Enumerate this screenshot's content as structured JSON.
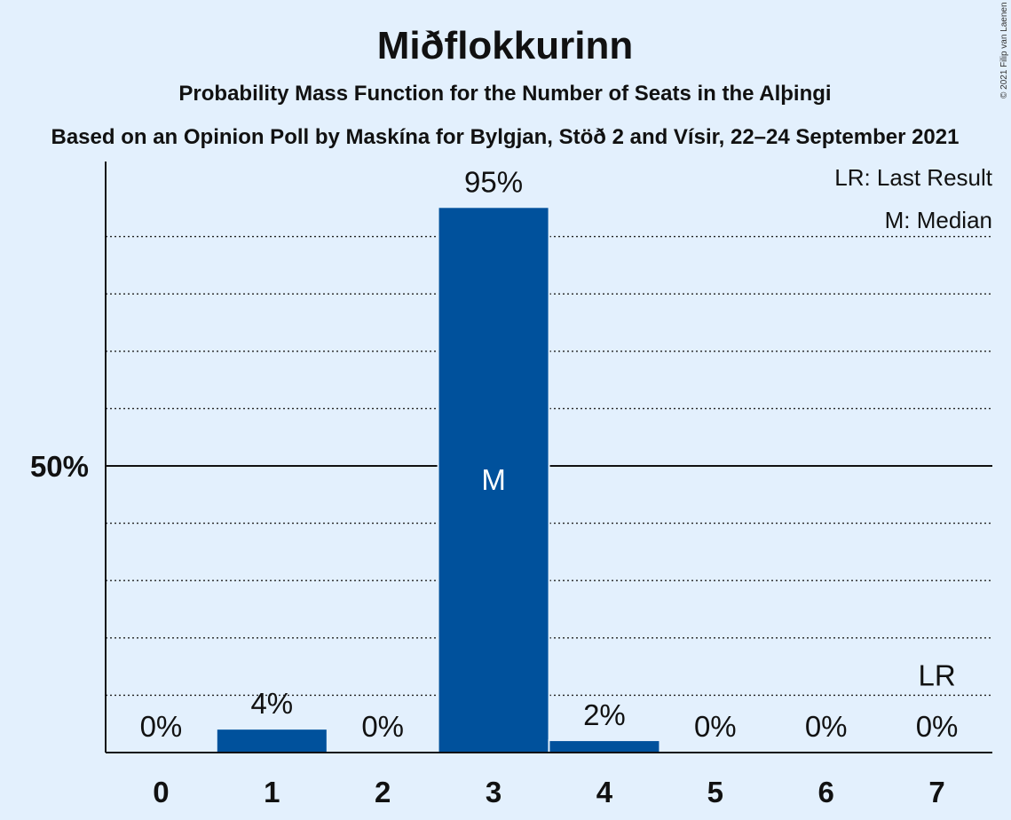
{
  "chart_data": {
    "type": "bar",
    "title": "Miðflokkurinn",
    "subtitle": "Probability Mass Function for the Number of Seats in the Alþingi",
    "subtitle2": "Based on an Opinion Poll by Maskína for Bylgjan, Stöð 2 and Vísir, 22–24 September 2021",
    "copyright": "© 2021 Filip van Laenen",
    "categories": [
      "0",
      "1",
      "2",
      "3",
      "4",
      "5",
      "6",
      "7"
    ],
    "values": [
      0,
      4,
      0,
      95,
      2,
      0,
      0,
      0
    ],
    "value_labels": [
      "0%",
      "4%",
      "0%",
      "95%",
      "2%",
      "0%",
      "0%",
      "0%"
    ],
    "ylim": [
      0,
      103
    ],
    "ytick_label": "50%",
    "ytick_value": 50,
    "grid_values": [
      10,
      20,
      30,
      40,
      60,
      70,
      80,
      90
    ],
    "median_index": 3,
    "median_label": "M",
    "last_result_index": 7,
    "last_result_label": "LR",
    "legend": [
      "LR: Last Result",
      "M: Median"
    ],
    "legend_position": "top-right",
    "bar_color": "#00519c",
    "background": "#e3f0fd"
  }
}
